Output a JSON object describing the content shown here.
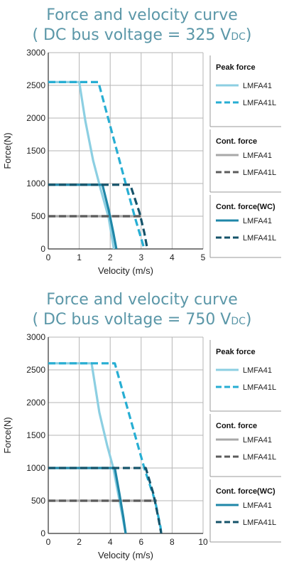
{
  "colors": {
    "peak_lmfa41": "#8ccfe2",
    "peak_lmfa41l": "#27aed3",
    "cont_lmfa41": "#a8a8a8",
    "cont_lmfa41l": "#5c5c5c",
    "wc_lmfa41": "#1f87a8",
    "wc_lmfa41l": "#15536a",
    "title": "#5b97a8",
    "grid": "#b5b5b5"
  },
  "chart_data": [
    {
      "type": "line",
      "title_prefix": "Force and velocity curve",
      "title_line2": "( DC bus voltage = 325 V",
      "title_sub": "DC",
      "title_suffix": ")",
      "xlabel": "Velocity (m/s)",
      "ylabel": "Force(N)",
      "xlim": [
        0,
        5
      ],
      "ylim": [
        0,
        3000
      ],
      "xticks": [
        "0",
        "1",
        "2",
        "3",
        "4",
        "5"
      ],
      "yticks": [
        "0",
        "500",
        "1000",
        "1500",
        "2000",
        "2500",
        "3000"
      ],
      "grid": true,
      "legend": {
        "placement": "right",
        "groups": [
          {
            "title": "Peak force",
            "items": [
              {
                "label": "LMFA41",
                "color_key": "peak_lmfa41",
                "dashed": false
              },
              {
                "label": "LMFA41L",
                "color_key": "peak_lmfa41l",
                "dashed": true
              }
            ]
          },
          {
            "title": "Cont. force",
            "items": [
              {
                "label": "LMFA41",
                "color_key": "cont_lmfa41",
                "dashed": false
              },
              {
                "label": "LMFA41L",
                "color_key": "cont_lmfa41l",
                "dashed": true
              }
            ]
          },
          {
            "title": "Cont. force(WC)",
            "items": [
              {
                "label": "LMFA41",
                "color_key": "wc_lmfa41",
                "dashed": false
              },
              {
                "label": "LMFA41L",
                "color_key": "wc_lmfa41l",
                "dashed": true
              }
            ]
          }
        ]
      },
      "series": [
        {
          "key": "peak-lmfa41",
          "color_key": "peak_lmfa41",
          "dashed": false,
          "points": [
            [
              0,
              2550
            ],
            [
              1.0,
              2550
            ],
            [
              1.2,
              1950
            ],
            [
              1.45,
              1350
            ],
            [
              1.7,
              900
            ],
            [
              1.95,
              480
            ],
            [
              2.12,
              0
            ]
          ]
        },
        {
          "key": "cont-lmfa41",
          "color_key": "cont_lmfa41",
          "dashed": false,
          "points": [
            [
              0,
              500
            ],
            [
              3.0,
              500
            ]
          ]
        },
        {
          "key": "cont-lmfa41l",
          "color_key": "cont_lmfa41l",
          "dashed": true,
          "points": [
            [
              0,
              500
            ],
            [
              3.0,
              500
            ]
          ]
        },
        {
          "key": "peak-lmfa41l",
          "color_key": "peak_lmfa41l",
          "dashed": true,
          "points": [
            [
              0,
              2550
            ],
            [
              1.62,
              2550
            ],
            [
              2.5,
              1000
            ],
            [
              2.8,
              480
            ],
            [
              3.05,
              80
            ],
            [
              3.1,
              0
            ]
          ]
        },
        {
          "key": "wc-lmfa41",
          "color_key": "wc_lmfa41",
          "dashed": false,
          "points": [
            [
              0,
              980
            ],
            [
              1.75,
              980
            ],
            [
              1.95,
              600
            ],
            [
              2.1,
              250
            ],
            [
              2.2,
              0
            ]
          ]
        },
        {
          "key": "wc-lmfa41l",
          "color_key": "wc_lmfa41l",
          "dashed": true,
          "points": [
            [
              0,
              980
            ],
            [
              2.65,
              980
            ],
            [
              2.95,
              550
            ],
            [
              3.1,
              250
            ],
            [
              3.2,
              0
            ]
          ]
        }
      ]
    },
    {
      "type": "line",
      "title_prefix": "Force and velocity curve",
      "title_line2": "( DC bus voltage = 750 V",
      "title_sub": "DC",
      "title_suffix": ")",
      "xlabel": "Velocity (m/s)",
      "ylabel": "Force(N)",
      "xlim": [
        0,
        10
      ],
      "ylim": [
        0,
        3000
      ],
      "xticks": [
        "0",
        "2",
        "4",
        "6",
        "8",
        "10"
      ],
      "yticks": [
        "0",
        "500",
        "1000",
        "1500",
        "2000",
        "2500",
        "3000"
      ],
      "grid": true,
      "legend": {
        "placement": "right",
        "groups": [
          {
            "title": "Peak force",
            "items": [
              {
                "label": "LMFA41",
                "color_key": "peak_lmfa41",
                "dashed": false
              },
              {
                "label": "LMFA41L",
                "color_key": "peak_lmfa41l",
                "dashed": true
              }
            ]
          },
          {
            "title": "Cont. force",
            "items": [
              {
                "label": "LMFA41",
                "color_key": "cont_lmfa41",
                "dashed": false
              },
              {
                "label": "LMFA41L",
                "color_key": "cont_lmfa41l",
                "dashed": true
              }
            ]
          },
          {
            "title": "Cont. force(WC)",
            "items": [
              {
                "label": "LMFA41",
                "color_key": "wc_lmfa41",
                "dashed": false
              },
              {
                "label": "LMFA41L",
                "color_key": "wc_lmfa41l",
                "dashed": true
              }
            ]
          }
        ]
      },
      "series": [
        {
          "key": "peak-lmfa41",
          "color_key": "peak_lmfa41",
          "dashed": false,
          "points": [
            [
              0,
              2600
            ],
            [
              2.8,
              2600
            ],
            [
              3.3,
              1850
            ],
            [
              3.8,
              1350
            ],
            [
              4.2,
              1000
            ],
            [
              4.6,
              500
            ],
            [
              5.0,
              0
            ]
          ]
        },
        {
          "key": "cont-lmfa41",
          "color_key": "cont_lmfa41",
          "dashed": false,
          "points": [
            [
              0,
              500
            ],
            [
              7.0,
              500
            ]
          ]
        },
        {
          "key": "cont-lmfa41l",
          "color_key": "cont_lmfa41l",
          "dashed": true,
          "points": [
            [
              0,
              500
            ],
            [
              7.0,
              500
            ]
          ]
        },
        {
          "key": "peak-lmfa41l",
          "color_key": "peak_lmfa41l",
          "dashed": true,
          "points": [
            [
              0,
              2600
            ],
            [
              4.3,
              2600
            ],
            [
              6.2,
              1000
            ],
            [
              6.9,
              500
            ],
            [
              7.25,
              100
            ],
            [
              7.3,
              0
            ]
          ]
        },
        {
          "key": "wc-lmfa41",
          "color_key": "wc_lmfa41",
          "dashed": false,
          "points": [
            [
              0,
              1000
            ],
            [
              4.3,
              1000
            ],
            [
              4.6,
              600
            ],
            [
              4.85,
              250
            ],
            [
              5.0,
              0
            ]
          ]
        },
        {
          "key": "wc-lmfa41l",
          "color_key": "wc_lmfa41l",
          "dashed": true,
          "points": [
            [
              0,
              1000
            ],
            [
              6.3,
              1000
            ],
            [
              6.8,
              600
            ],
            [
              7.1,
              250
            ],
            [
              7.3,
              0
            ]
          ]
        }
      ]
    }
  ]
}
